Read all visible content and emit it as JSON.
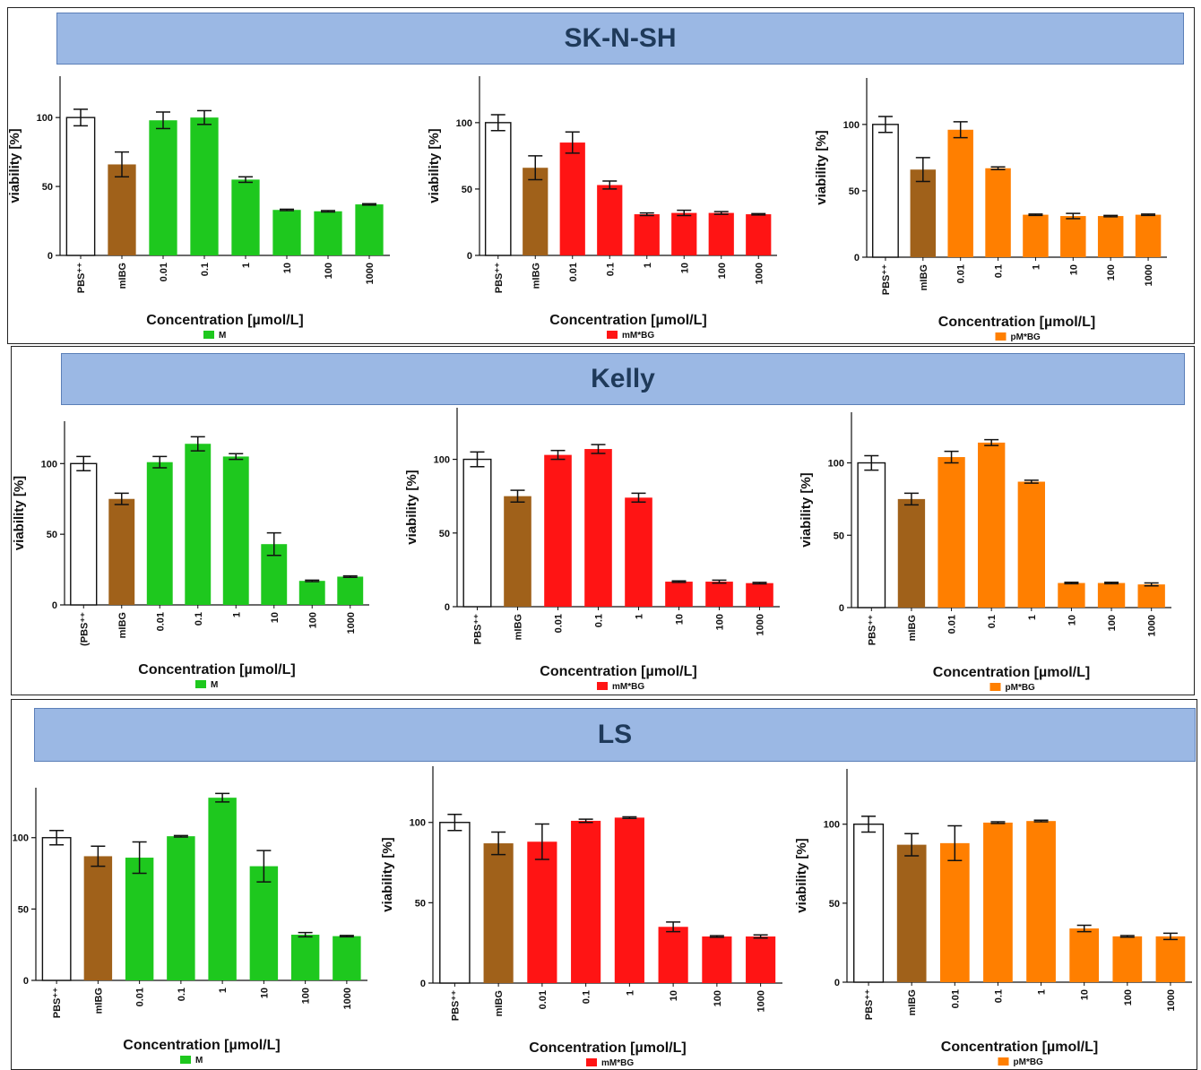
{
  "x_axis_label": "Concentration [µmol/L]",
  "y_axis_label": "viability [%]",
  "colors": {
    "control": "#ffffff",
    "mibg": "#a0611a",
    "M": "#1ec81e",
    "mM*BG": "#ff1414",
    "pM*BG": "#ff7f00"
  },
  "sections": [
    {
      "title": "SK-N-SH"
    },
    {
      "title": "Kelly"
    },
    {
      "title": "LS"
    }
  ],
  "chart_data": [
    {
      "type": "bar",
      "group": "SK-N-SH",
      "legend": "M",
      "ylabel": "viability [%]",
      "xlabel": "Concentration [µmol/L]",
      "categories": [
        "PBS⁺⁺",
        "mIBG",
        "0.01",
        "0.1",
        "1",
        "10",
        "100",
        "1000"
      ],
      "values": [
        100,
        66,
        98,
        100,
        55,
        33,
        32,
        37
      ],
      "errors": [
        6,
        9,
        6,
        5,
        2,
        0.5,
        0.5,
        0.5
      ],
      "ylim": [
        0,
        130
      ],
      "yticks": [
        0,
        50,
        100
      ]
    },
    {
      "type": "bar",
      "group": "SK-N-SH",
      "legend": "mM*BG",
      "ylabel": "viability [%]",
      "xlabel": "Concentration [µmol/L]",
      "categories": [
        "PBS⁺⁺",
        "mIBG",
        "0.01",
        "0.1",
        "1",
        "10",
        "100",
        "1000"
      ],
      "values": [
        100,
        66,
        85,
        53,
        31,
        32,
        32,
        31
      ],
      "errors": [
        6,
        9,
        8,
        3,
        1,
        2,
        1,
        0.5
      ],
      "ylim": [
        0,
        135
      ],
      "yticks": [
        0,
        50,
        100
      ]
    },
    {
      "type": "bar",
      "group": "SK-N-SH",
      "legend": "pM*BG",
      "ylabel": "viability [%]",
      "xlabel": "Concentration [µmol/L]",
      "categories": [
        "PBS⁺⁺",
        "mIBG",
        "0.01",
        "0.1",
        "1",
        "10",
        "100",
        "1000"
      ],
      "values": [
        100,
        66,
        96,
        67,
        32,
        31,
        31,
        32
      ],
      "errors": [
        6,
        9,
        6,
        1,
        0.5,
        2,
        0.5,
        0.5
      ],
      "ylim": [
        0,
        135
      ],
      "yticks": [
        0,
        50,
        100
      ]
    },
    {
      "type": "bar",
      "group": "Kelly",
      "legend": "M",
      "ylabel": "viability [%]",
      "xlabel": "Concentration [µmol/L]",
      "categories": [
        "(PBS⁺⁺",
        "mIBG",
        "0.01",
        "0.1",
        "1",
        "10",
        "100",
        "1000"
      ],
      "values": [
        100,
        75,
        101,
        114,
        105,
        43,
        17,
        20
      ],
      "errors": [
        5,
        4,
        4,
        5,
        2,
        8,
        0.5,
        0.5
      ],
      "ylim": [
        0,
        130
      ],
      "yticks": [
        0,
        50,
        100
      ]
    },
    {
      "type": "bar",
      "group": "Kelly",
      "legend": "mM*BG",
      "ylabel": "viability [%]",
      "xlabel": "Concentration [µmol/L]",
      "categories": [
        "PBS⁺⁺",
        "mIBG",
        "0.01",
        "0.1",
        "1",
        "10",
        "100",
        "1000"
      ],
      "values": [
        100,
        75,
        103,
        107,
        74,
        17,
        17,
        16
      ],
      "errors": [
        5,
        4,
        3,
        3,
        3,
        0.5,
        1,
        0.5
      ],
      "ylim": [
        0,
        135
      ],
      "yticks": [
        0,
        50,
        100
      ]
    },
    {
      "type": "bar",
      "group": "Kelly",
      "legend": "pM*BG",
      "ylabel": "viability [%]",
      "xlabel": "Concentration [µmol/L]",
      "categories": [
        "PBS⁺⁺",
        "mIBG",
        "0.01",
        "0.1",
        "1",
        "10",
        "100",
        "1000"
      ],
      "values": [
        100,
        75,
        104,
        114,
        87,
        17,
        17,
        16
      ],
      "errors": [
        5,
        4,
        4,
        2,
        1,
        0.5,
        0.5,
        1
      ],
      "ylim": [
        0,
        135
      ],
      "yticks": [
        0,
        50,
        100
      ]
    },
    {
      "type": "bar",
      "group": "LS",
      "legend": "M",
      "ylabel": "",
      "xlabel": "Concentration [µmol/L]",
      "categories": [
        "PBS⁺⁺",
        "mIBG",
        "0.01",
        "0.1",
        "1",
        "10",
        "100",
        "1000"
      ],
      "values": [
        100,
        87,
        86,
        101,
        128,
        80,
        32,
        31
      ],
      "errors": [
        5,
        7,
        11,
        0.5,
        3,
        11,
        1.5,
        0.5
      ],
      "ylim": [
        0,
        135
      ],
      "yticks": [
        0,
        50,
        100
      ]
    },
    {
      "type": "bar",
      "group": "LS",
      "legend": "mM*BG",
      "ylabel": "viability [%]",
      "xlabel": "Concentration [µmol/L]",
      "categories": [
        "PBS⁺⁺",
        "mIBG",
        "0.01",
        "0.1",
        "1",
        "10",
        "100",
        "1000"
      ],
      "values": [
        100,
        87,
        88,
        101,
        103,
        35,
        29,
        29
      ],
      "errors": [
        5,
        7,
        11,
        1,
        0.5,
        3,
        0.5,
        1
      ],
      "ylim": [
        0,
        135
      ],
      "yticks": [
        0,
        50,
        100
      ]
    },
    {
      "type": "bar",
      "group": "LS",
      "legend": "pM*BG",
      "ylabel": "viability [%]",
      "xlabel": "Concentration [µmol/L]",
      "categories": [
        "PBS⁺⁺",
        "mIBG",
        "0.01",
        "0.1",
        "1",
        "10",
        "100",
        "1000"
      ],
      "values": [
        100,
        87,
        88,
        101,
        102,
        34,
        29,
        29
      ],
      "errors": [
        5,
        7,
        11,
        0.5,
        0.5,
        2,
        0.5,
        2
      ],
      "ylim": [
        0,
        135
      ],
      "yticks": [
        0,
        50,
        100
      ]
    }
  ]
}
